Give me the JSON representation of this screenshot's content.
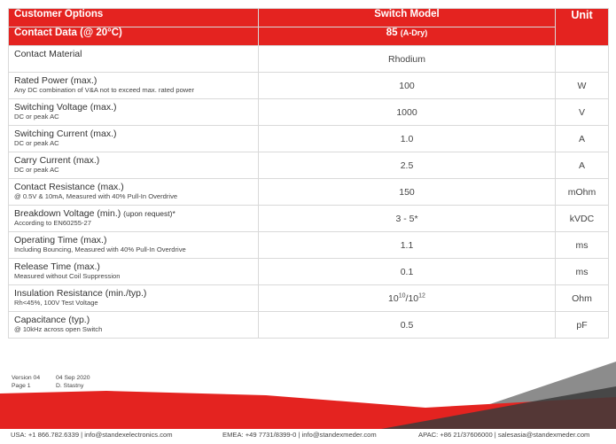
{
  "header": {
    "customer_options": "Customer Options",
    "switch_model": "Switch Model",
    "unit": "Unit",
    "contact_data": "Contact Data (@ 20°C)",
    "model_number": "85",
    "model_suffix": "(A-Dry)"
  },
  "rows": [
    {
      "name": "Contact Material",
      "extra": "",
      "note": "",
      "value": "Rhodium",
      "unit": ""
    },
    {
      "name": "Rated Power (max.)",
      "extra": "",
      "note": "Any DC combination of V&A not to exceed max. rated power",
      "value": "100",
      "unit": "W"
    },
    {
      "name": "Switching Voltage (max.)",
      "extra": "",
      "note": "DC or peak AC",
      "value": "1000",
      "unit": "V"
    },
    {
      "name": "Switching Current (max.)",
      "extra": "",
      "note": "DC or peak AC",
      "value": "1.0",
      "unit": "A"
    },
    {
      "name": "Carry Current (max.)",
      "extra": "",
      "note": "DC or peak AC",
      "value": "2.5",
      "unit": "A"
    },
    {
      "name": "Contact Resistance (max.)",
      "extra": "",
      "note": "@ 0.5V & 10mA, Measured with 40% Pull-In Overdrive",
      "value": "150",
      "unit": "mOhm"
    },
    {
      "name": "Breakdown Voltage (min.)",
      "extra": "(upon request)*",
      "note": "According to EN60255-27",
      "value": "3 - 5*",
      "unit": "kVDC"
    },
    {
      "name": "Operating Time (max.)",
      "extra": "",
      "note": "Including Bouncing, Measured with 40% Pull-In Overdrive",
      "value": "1.1",
      "unit": "ms"
    },
    {
      "name": "Release Time (max.)",
      "extra": "",
      "note": "Measured without Coil Suppression",
      "value": "0.1",
      "unit": "ms"
    },
    {
      "name": "Insulation Resistance (min./typ.)",
      "extra": "",
      "note": "Rh<45%, 100V Test Voltage",
      "value": "",
      "unit": "Ohm"
    },
    {
      "name": "Capacitance (typ.)",
      "extra": "",
      "note": "@ 10kHz across open Switch",
      "value": "0.5",
      "unit": "pF"
    }
  ],
  "insulation_value": {
    "base1": "10",
    "exp1": "10",
    "sep": "/",
    "base2": "10",
    "exp2": "12"
  },
  "meta": {
    "version_label": "Version 04",
    "date": "04 Sep 2020",
    "page_label": "Page 1",
    "author": "D. Stastny"
  },
  "contacts": {
    "usa": "USA: +1 866.782.6339 | info@standexelectronics.com",
    "emea": "EMEA: +49 7731/8399-0 | info@standexmeder.com",
    "apac": "APAC: +86 21/37606000 | salesasia@standexmeder.com"
  },
  "colors": {
    "brand_red": "#e42320",
    "gray_band": "#8c8c8c",
    "dark_band": "#3b3b3b"
  }
}
